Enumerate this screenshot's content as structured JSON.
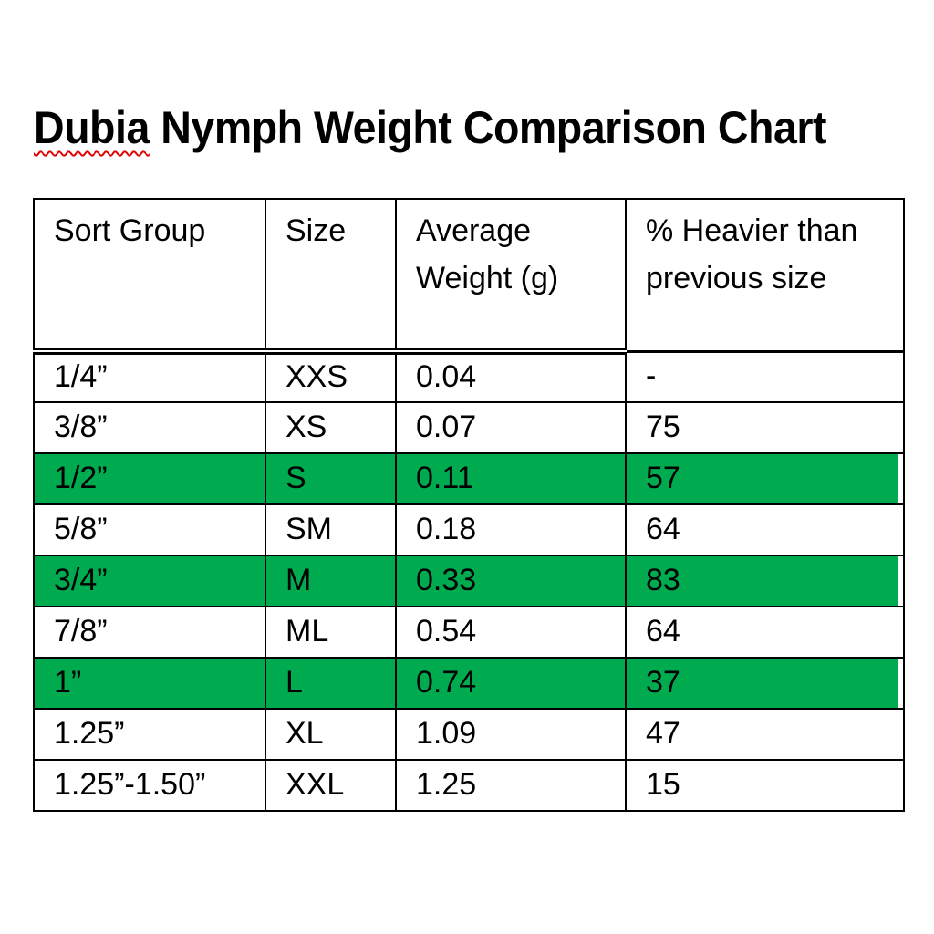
{
  "title": {
    "misspelled_word": "Dubia",
    "rest": " Nymph Weight Comparison Chart",
    "full": "Dubia Nymph Weight Comparison Chart"
  },
  "colors": {
    "highlight_green": "#00AB4F",
    "table_border": "#000000",
    "spellcheck_squiggle_red": "#E00000",
    "text": "#000000",
    "background": "#FFFFFF"
  },
  "chart_data": {
    "type": "table",
    "title": "Dubia Nymph Weight Comparison Chart",
    "columns": [
      "Sort Group",
      "Size",
      "Average Weight (g)",
      "% Heavier than previous size"
    ],
    "rows": [
      {
        "cells": [
          "1/4”",
          "XXS",
          "0.04",
          "-"
        ],
        "highlighted": false
      },
      {
        "cells": [
          "3/8”",
          "XS",
          "0.07",
          "75"
        ],
        "highlighted": false
      },
      {
        "cells": [
          "1/2”",
          "S",
          "0.11",
          "57"
        ],
        "highlighted": true
      },
      {
        "cells": [
          "5/8”",
          "SM",
          "0.18",
          "64"
        ],
        "highlighted": false
      },
      {
        "cells": [
          "3/4”",
          "M",
          "0.33",
          "83"
        ],
        "highlighted": true
      },
      {
        "cells": [
          "7/8”",
          "ML",
          "0.54",
          "64"
        ],
        "highlighted": false
      },
      {
        "cells": [
          "1”",
          "L",
          "0.74",
          "37"
        ],
        "highlighted": true
      },
      {
        "cells": [
          "1.25”",
          "XL",
          "1.09",
          "47"
        ],
        "highlighted": false
      },
      {
        "cells": [
          "1.25”-1.50”",
          "XXL",
          "1.25",
          "15"
        ],
        "highlighted": false
      }
    ],
    "highlighted_row_indices": [
      2,
      4,
      6
    ],
    "layout_hints": {
      "header_bottom_border": "double line under columns 1-3, single line under column 4",
      "highlight_color": "#00AB4F"
    }
  }
}
